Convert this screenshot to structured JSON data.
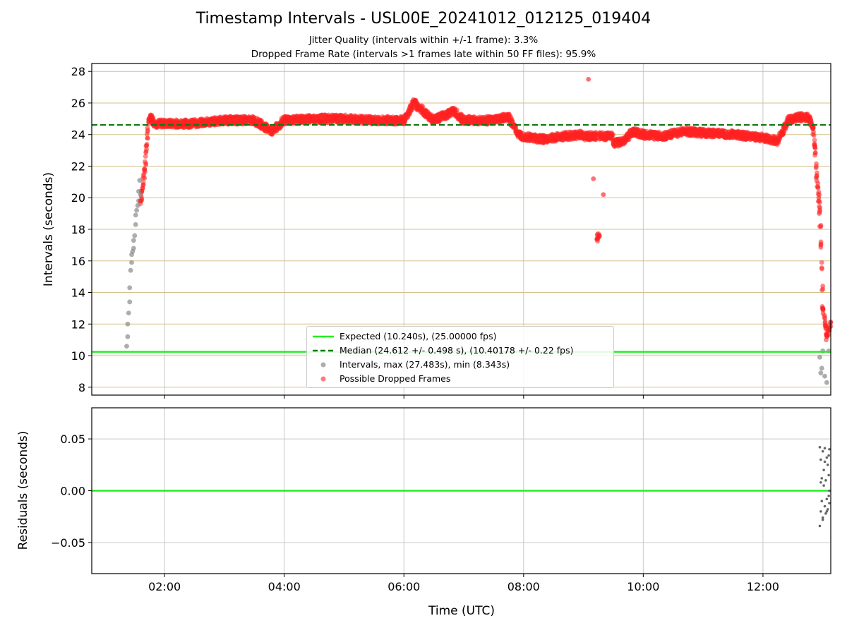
{
  "header": {
    "title": "Timestamp Intervals - USL00E_20241012_012125_019404",
    "subtitle_1": "Jitter Quality (intervals within +/-1 frame): 3.3%",
    "subtitle_2": "Dropped Frame Rate (intervals >1 frames late within 50 FF files): 95.9%"
  },
  "colors": {
    "expected": "#22ee22",
    "median": "#117711",
    "intervals": "#8a8a8a",
    "dropped": "#ff2222",
    "hgrid": "#d4c08a",
    "vgrid": "#c8c8c8",
    "residuals": "#666666"
  },
  "chart_data": [
    {
      "type": "scatter",
      "ylabel": "Intervals (seconds)",
      "xlim": [
        "00:47",
        "13:08"
      ],
      "ylim": [
        7.5,
        28.5
      ],
      "yticks": [
        "8",
        "10",
        "12",
        "14",
        "16",
        "18",
        "20",
        "22",
        "24",
        "26",
        "28"
      ],
      "xticks": [
        "02:00",
        "04:00",
        "06:00",
        "08:00",
        "10:00",
        "12:00"
      ],
      "expected_value": 10.24,
      "median_value": 24.612,
      "legend": {
        "placement": "lower-center",
        "expected": "Expected (10.240s), (25.00000 fps)",
        "median": "Median (24.612 +/- 0.498 s), (10.40178 +/- 0.22 fps)",
        "intervals": "Intervals, max (27.483s), min (8.343s)",
        "dropped": "Possible Dropped Frames"
      },
      "series": [
        {
          "name": "Intervals, max (27.483s), min (8.343s)",
          "x": [
            "01:22",
            "01:23",
            "01:23",
            "01:24",
            "01:25",
            "01:25",
            "01:26",
            "01:27",
            "01:27",
            "01:28",
            "01:29",
            "01:29",
            "01:30",
            "01:31",
            "01:31",
            "01:32",
            "01:33",
            "01:34",
            "01:34",
            "01:35",
            "01:36",
            "12:57",
            "12:58",
            "12:59",
            "13:00",
            "13:02",
            "13:04",
            "13:06"
          ],
          "y": [
            10.6,
            11.2,
            12.0,
            12.7,
            13.4,
            14.3,
            15.4,
            15.9,
            16.4,
            16.6,
            16.8,
            17.3,
            17.6,
            18.3,
            18.9,
            19.2,
            19.5,
            19.8,
            20.4,
            21.1,
            20.2,
            9.9,
            8.9,
            9.2,
            10.3,
            8.7,
            8.3,
            10.3
          ]
        },
        {
          "name": "Possible Dropped Frames",
          "x": [
            "01:36",
            "01:38",
            "01:40",
            "01:42",
            "01:44",
            "01:46",
            "01:50",
            "02:00",
            "02:30",
            "03:00",
            "03:30",
            "03:48",
            "04:00",
            "04:30",
            "05:00",
            "05:30",
            "06:00",
            "06:10",
            "06:30",
            "06:50",
            "07:00",
            "07:30",
            "07:45",
            "07:55",
            "08:00",
            "08:20",
            "08:40",
            "09:00",
            "09:05",
            "09:10",
            "09:14",
            "09:16",
            "09:20",
            "09:30",
            "09:40",
            "09:50",
            "10:00",
            "10:20",
            "10:40",
            "11:00",
            "11:30",
            "12:00",
            "12:15",
            "12:25",
            "12:35",
            "12:45",
            "12:50",
            "12:52",
            "12:54",
            "12:56",
            "12:57",
            "12:58",
            "13:00",
            "13:04",
            "13:08"
          ],
          "y": [
            19.8,
            20.6,
            21.8,
            23.3,
            24.8,
            25.2,
            24.7,
            24.7,
            24.7,
            24.9,
            24.9,
            24.2,
            24.9,
            25.0,
            25.0,
            24.9,
            24.9,
            26.0,
            24.9,
            25.5,
            24.9,
            24.9,
            25.1,
            24.0,
            23.9,
            23.7,
            23.9,
            24.0,
            27.5,
            21.2,
            17.4,
            17.6,
            20.2,
            23.4,
            23.6,
            24.2,
            24.0,
            23.9,
            24.2,
            24.1,
            24.0,
            23.8,
            23.6,
            24.9,
            25.1,
            25.1,
            24.4,
            23.2,
            21.4,
            20.0,
            19.2,
            17.0,
            13.0,
            11.2,
            12.1
          ]
        }
      ]
    },
    {
      "type": "scatter",
      "xlabel": "Time (UTC)",
      "ylabel": "Residuals (seconds)",
      "ylim": [
        -0.08,
        0.08
      ],
      "yticks": [
        "−0.05",
        "0.00",
        "0.05"
      ],
      "xticks": [
        "02:00",
        "04:00",
        "06:00",
        "08:00",
        "10:00",
        "12:00"
      ],
      "series": [
        {
          "name": "Residuals",
          "x": [
            "12:57",
            "12:57",
            "12:58",
            "12:58",
            "12:59",
            "12:59",
            "13:00",
            "13:00",
            "13:01",
            "13:01",
            "13:02",
            "13:02",
            "13:03",
            "13:03",
            "13:04",
            "13:04",
            "13:05",
            "13:05",
            "13:06",
            "13:06",
            "13:07",
            "13:07",
            "13:08",
            "12:58",
            "13:00",
            "13:02",
            "13:04",
            "13:06"
          ],
          "y": [
            0.042,
            -0.034,
            0.03,
            -0.02,
            0.012,
            -0.01,
            0.038,
            -0.028,
            0.005,
            0.02,
            -0.015,
            0.041,
            -0.022,
            0.01,
            0.032,
            -0.008,
            0.025,
            -0.018,
            0.015,
            -0.005,
            0.04,
            -0.012,
            0.0,
            0.008,
            -0.026,
            0.028,
            -0.02,
            0.034
          ]
        }
      ]
    }
  ]
}
